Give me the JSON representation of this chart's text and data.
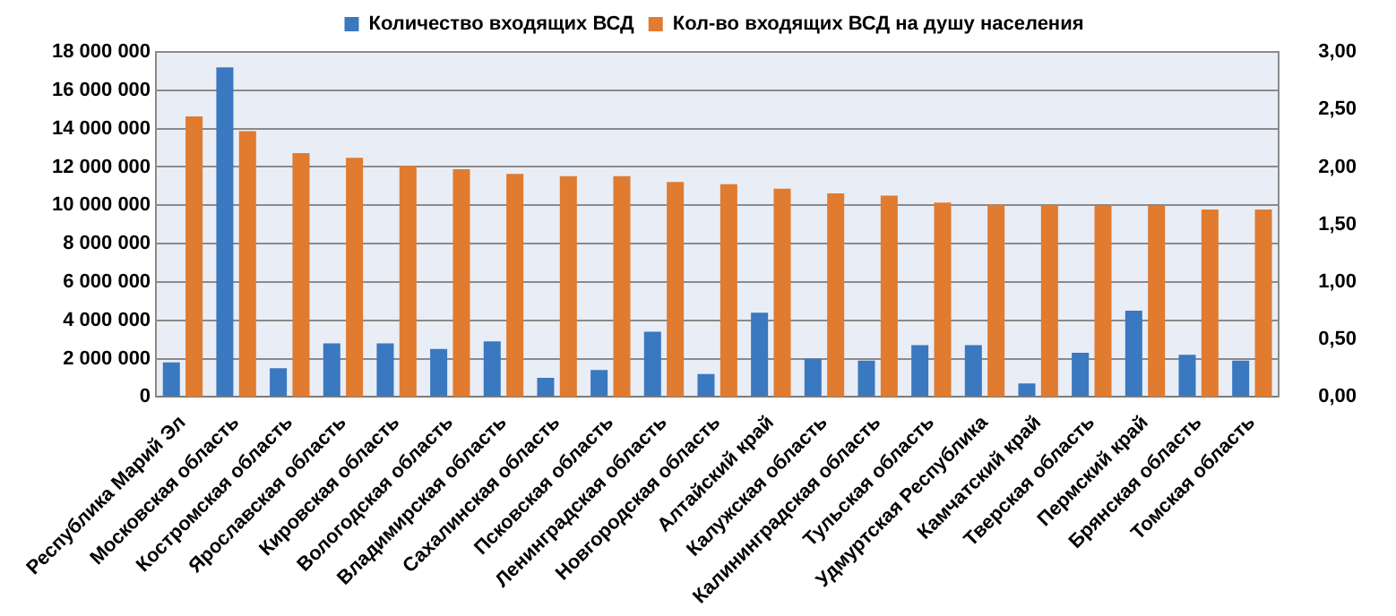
{
  "chart_data": {
    "type": "bar",
    "categories": [
      "Республика Марий Эл",
      "Московская область",
      "Костромская область",
      "Ярославская область",
      "Кировская область",
      "Вологодская область",
      "Владимирская область",
      "Сахалинская область",
      "Псковская область",
      "Ленинградская область",
      "Новгородская область",
      "Алтайский край",
      "Калужская область",
      "Калининградская область",
      "Тульская область",
      "Удмуртская Республика",
      "Камчатский край",
      "Тверская область",
      "Пермский край",
      "Брянская область",
      "Томская область"
    ],
    "series": [
      {
        "name": "Количество входящих ВСД",
        "color": "#3a78c0",
        "values": [
          1800000,
          17200000,
          1500000,
          2800000,
          2800000,
          2500000,
          2900000,
          1000000,
          1400000,
          3400000,
          1200000,
          4400000,
          2000000,
          1900000,
          2700000,
          2700000,
          700000,
          2300000,
          4500000,
          2200000,
          1900000
        ]
      },
      {
        "name": "Кол-во входящих ВСД на душу населения",
        "color": "#e07b30",
        "axis": "y2",
        "values": [
          2.44,
          2.31,
          2.12,
          2.08,
          2.01,
          1.98,
          1.94,
          1.92,
          1.92,
          1.87,
          1.85,
          1.81,
          1.77,
          1.75,
          1.69,
          1.67,
          1.67,
          1.66,
          1.66,
          1.63,
          1.63
        ]
      }
    ],
    "ylim": [
      0,
      18000000
    ],
    "yticks": [
      {
        "value": 0,
        "label": "0"
      },
      {
        "value": 2000000,
        "label": "2 000 000"
      },
      {
        "value": 4000000,
        "label": "4 000 000"
      },
      {
        "value": 6000000,
        "label": "6 000 000"
      },
      {
        "value": 8000000,
        "label": "8 000 000"
      },
      {
        "value": 10000000,
        "label": "10 000 000"
      },
      {
        "value": 12000000,
        "label": "12 000 000"
      },
      {
        "value": 14000000,
        "label": "14 000 000"
      },
      {
        "value": 16000000,
        "label": "16 000 000"
      },
      {
        "value": 18000000,
        "label": "18 000 000"
      }
    ],
    "y2lim": [
      0,
      3
    ],
    "y2ticks": [
      {
        "value": 0,
        "label": "0,00"
      },
      {
        "value": 0.5,
        "label": "0,50"
      },
      {
        "value": 1,
        "label": "1,00"
      },
      {
        "value": 1.5,
        "label": "1,50"
      },
      {
        "value": 2,
        "label": "2,00"
      },
      {
        "value": 2.5,
        "label": "2,50"
      },
      {
        "value": 3,
        "label": "3,00"
      }
    ],
    "grid": "y",
    "legend": "top"
  }
}
